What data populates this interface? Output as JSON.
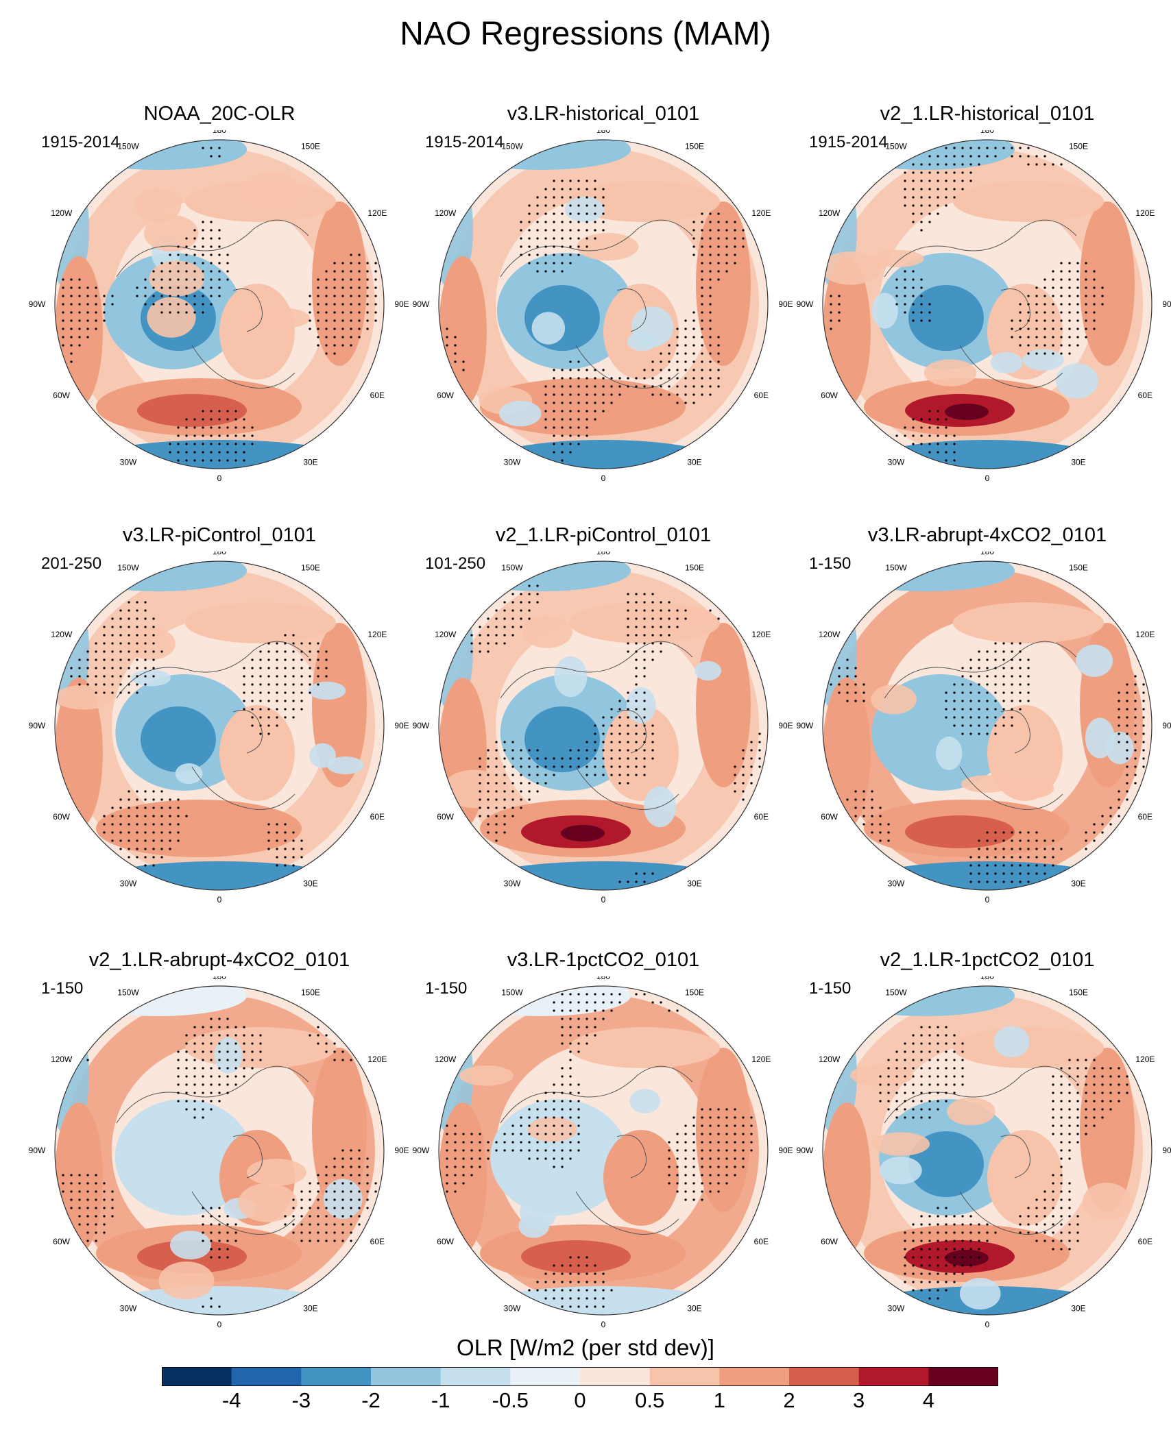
{
  "title": "NAO Regressions (MAM)",
  "lon_labels": [
    "180",
    "150E",
    "120E",
    "90E",
    "60E",
    "30E",
    "0",
    "30W",
    "60W",
    "90W",
    "120W",
    "150W"
  ],
  "panels": [
    {
      "title": "NOAA_20C-OLR",
      "period": "1915-2014",
      "pattern": "obs"
    },
    {
      "title": "v3.LR-historical_0101",
      "period": "1915-2014",
      "pattern": "weak"
    },
    {
      "title": "v2_1.LR-historical_0101",
      "period": "1915-2014",
      "pattern": "strong"
    },
    {
      "title": "v3.LR-piControl_0101",
      "period": "201-250",
      "pattern": "weak"
    },
    {
      "title": "v2_1.LR-piControl_0101",
      "period": "101-250",
      "pattern": "strong"
    },
    {
      "title": "v3.LR-abrupt-4xCO2_0101",
      "period": "1-150",
      "pattern": "ring"
    },
    {
      "title": "v2_1.LR-abrupt-4xCO2_0101",
      "period": "1-150",
      "pattern": "warm"
    },
    {
      "title": "v3.LR-1pctCO2_0101",
      "period": "1-150",
      "pattern": "warm"
    },
    {
      "title": "v2_1.LR-1pctCO2_0101",
      "period": "1-150",
      "pattern": "strong"
    }
  ],
  "colorbar": {
    "title": "OLR [W/m2 (per std dev)]",
    "tick_labels": [
      "-4",
      "-3",
      "-2",
      "-1",
      "-0.5",
      "0",
      "0.5",
      "1",
      "2",
      "3",
      "4"
    ],
    "colors": [
      "#053061",
      "#2166ac",
      "#4393c3",
      "#92c5de",
      "#c7e0ee",
      "#e8f1f6",
      "#fbe6dc",
      "#f7c3aa",
      "#ef9f80",
      "#d6604d",
      "#b2182b",
      "#67001f"
    ]
  }
}
